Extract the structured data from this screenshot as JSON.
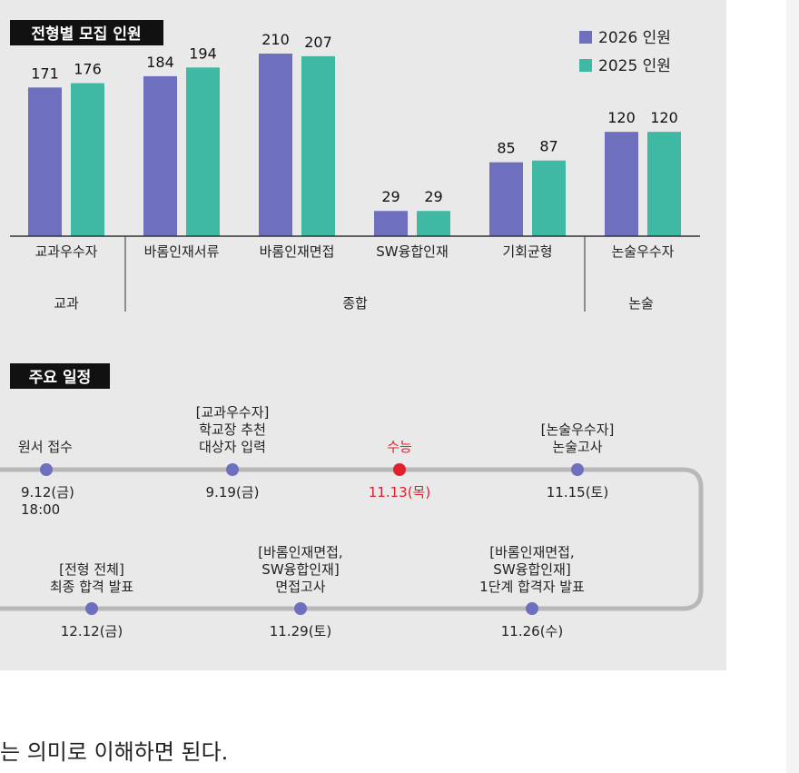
{
  "chart_data": {
    "type": "bar",
    "title": "전형별 모집 인원",
    "categories": [
      "교과우수자",
      "바롬인재서류",
      "바롬인재면접",
      "SW융합인재",
      "기회균형",
      "논술우수자"
    ],
    "series": [
      {
        "name": "2026 인원",
        "values": [
          171,
          184,
          210,
          29,
          85,
          120
        ]
      },
      {
        "name": "2025 인원",
        "values": [
          176,
          194,
          207,
          29,
          87,
          120
        ]
      }
    ],
    "groups": [
      {
        "label": "교과",
        "categories": [
          "교과우수자"
        ]
      },
      {
        "label": "종합",
        "categories": [
          "바롬인재서류",
          "바롬인재면접",
          "SW융합인재",
          "기회균형"
        ]
      },
      {
        "label": "논술",
        "categories": [
          "논술우수자"
        ]
      }
    ],
    "colors": [
      "#6e6fbf",
      "#3fb8a4"
    ],
    "ylim": [
      0,
      210
    ],
    "legend": "top-right",
    "grid": false
  },
  "schedule": {
    "title": "주요 일정",
    "events": [
      {
        "label_lines": [
          "원서 접수"
        ],
        "date_lines": [
          "9.12(금)",
          "18:00"
        ],
        "highlight": false
      },
      {
        "label_lines": [
          "[교과우수자]",
          "학교장 추천",
          "대상자 입력"
        ],
        "date_lines": [
          "9.19(금)"
        ],
        "highlight": false
      },
      {
        "label_lines": [
          "수능"
        ],
        "date_lines": [
          "11.13(목)"
        ],
        "highlight": true
      },
      {
        "label_lines": [
          "[논술우수자]",
          "논술고사"
        ],
        "date_lines": [
          "11.15(토)"
        ],
        "highlight": false
      },
      {
        "label_lines": [
          "[바롬인재면접,",
          "SW융합인재]",
          "1단계 합격자 발표"
        ],
        "date_lines": [
          "11.26(수)"
        ],
        "highlight": false
      },
      {
        "label_lines": [
          "[바롬인재면접,",
          "SW융합인재]",
          "면접고사"
        ],
        "date_lines": [
          "11.29(토)"
        ],
        "highlight": false
      },
      {
        "label_lines": [
          "[전형 전체]",
          "최종 합격 발표"
        ],
        "date_lines": [
          "12.12(금)"
        ],
        "highlight": false
      }
    ],
    "colors": {
      "dot": "#6e6fbf",
      "highlight": "#e0212c",
      "line": "#b8b8b8"
    }
  },
  "body_text": "는 의미로 이해하면 된다."
}
